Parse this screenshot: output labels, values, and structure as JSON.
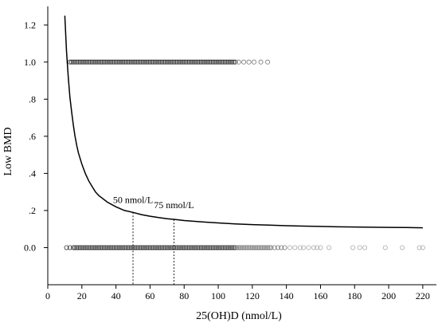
{
  "chart_data": {
    "type": "scatter",
    "title": "",
    "xlabel": "25(OH)D (nmol/L)",
    "ylabel": "Low BMD",
    "xlim": [
      0,
      228
    ],
    "ylim": [
      -0.2,
      1.3
    ],
    "x_ticks": [
      0,
      20,
      40,
      60,
      80,
      100,
      120,
      140,
      160,
      180,
      200,
      220
    ],
    "x_tick_labels": [
      "0",
      "20",
      "40",
      "60",
      "80",
      "100",
      "120",
      "140",
      "160",
      "180",
      "200",
      "220"
    ],
    "y_ticks": [
      0.0,
      0.2,
      0.4,
      0.6,
      0.8,
      1.0,
      1.2
    ],
    "y_tick_labels": [
      "0.0",
      ".2",
      ".4",
      ".6",
      ".8",
      "1.0",
      "1.2"
    ],
    "grid": false,
    "series": [
      {
        "kind": "points",
        "y": 1.0,
        "x": [
          13,
          14,
          15,
          16,
          17,
          18,
          19,
          20,
          21,
          22,
          23,
          24,
          25,
          26,
          27,
          28,
          29,
          30,
          31,
          32,
          33,
          34,
          35,
          36,
          37,
          38,
          39,
          40,
          41,
          42,
          43,
          44,
          45,
          46,
          47,
          48,
          49,
          50,
          51,
          52,
          53,
          54,
          55,
          56,
          57,
          58,
          59,
          60,
          61,
          62,
          63,
          64,
          65,
          66,
          67,
          68,
          69,
          70,
          71,
          72,
          73,
          74,
          75,
          76,
          77,
          78,
          79,
          80,
          81,
          82,
          83,
          84,
          85,
          86,
          87,
          88,
          89,
          90,
          91,
          92,
          93,
          94,
          95,
          96,
          97,
          98,
          99,
          100,
          101,
          102,
          103,
          104,
          105,
          106,
          107,
          108,
          109,
          110,
          112,
          115,
          118,
          121,
          125,
          129
        ]
      },
      {
        "kind": "points",
        "y": 0.0,
        "x": [
          11,
          13,
          15,
          16,
          17,
          18,
          19,
          20,
          21,
          22,
          23,
          24,
          25,
          26,
          27,
          28,
          29,
          30,
          31,
          32,
          33,
          34,
          35,
          36,
          37,
          38,
          39,
          40,
          41,
          42,
          43,
          44,
          45,
          46,
          47,
          48,
          49,
          50,
          51,
          52,
          53,
          54,
          55,
          56,
          57,
          58,
          59,
          60,
          61,
          62,
          63,
          64,
          65,
          66,
          67,
          68,
          69,
          70,
          71,
          72,
          73,
          74,
          75,
          76,
          77,
          78,
          79,
          80,
          81,
          82,
          83,
          84,
          85,
          86,
          87,
          88,
          89,
          90,
          91,
          92,
          93,
          94,
          95,
          96,
          97,
          98,
          99,
          100,
          101,
          102,
          103,
          104,
          105,
          106,
          107,
          108,
          109,
          110,
          111,
          112,
          113,
          114,
          115,
          116,
          117,
          118,
          119,
          120,
          121,
          122,
          123,
          124,
          125,
          126,
          127,
          128,
          129,
          130,
          131,
          133,
          135,
          137,
          139,
          142,
          145,
          148,
          150,
          153,
          156,
          158,
          160,
          165,
          179,
          183,
          186,
          198,
          208,
          218,
          220
        ]
      },
      {
        "kind": "curve",
        "x": [
          10,
          11,
          12,
          13,
          14,
          15,
          16,
          17,
          18,
          20,
          22,
          24,
          26,
          28,
          30,
          35,
          40,
          45,
          50,
          55,
          60,
          65,
          70,
          75,
          80,
          90,
          100,
          110,
          120,
          130,
          140,
          150,
          160,
          170,
          180,
          190,
          200,
          210,
          220
        ],
        "y": [
          1.25,
          1.06,
          0.92,
          0.81,
          0.73,
          0.66,
          0.6,
          0.55,
          0.51,
          0.45,
          0.4,
          0.36,
          0.33,
          0.3,
          0.28,
          0.245,
          0.22,
          0.2,
          0.19,
          0.178,
          0.169,
          0.162,
          0.156,
          0.151,
          0.146,
          0.139,
          0.133,
          0.128,
          0.124,
          0.121,
          0.118,
          0.116,
          0.114,
          0.112,
          0.111,
          0.11,
          0.109,
          0.108,
          0.107
        ]
      }
    ],
    "annotations": [
      {
        "x": 50,
        "text": "50 nmol/L"
      },
      {
        "x": 74,
        "text": "75 nmol/L"
      }
    ]
  }
}
